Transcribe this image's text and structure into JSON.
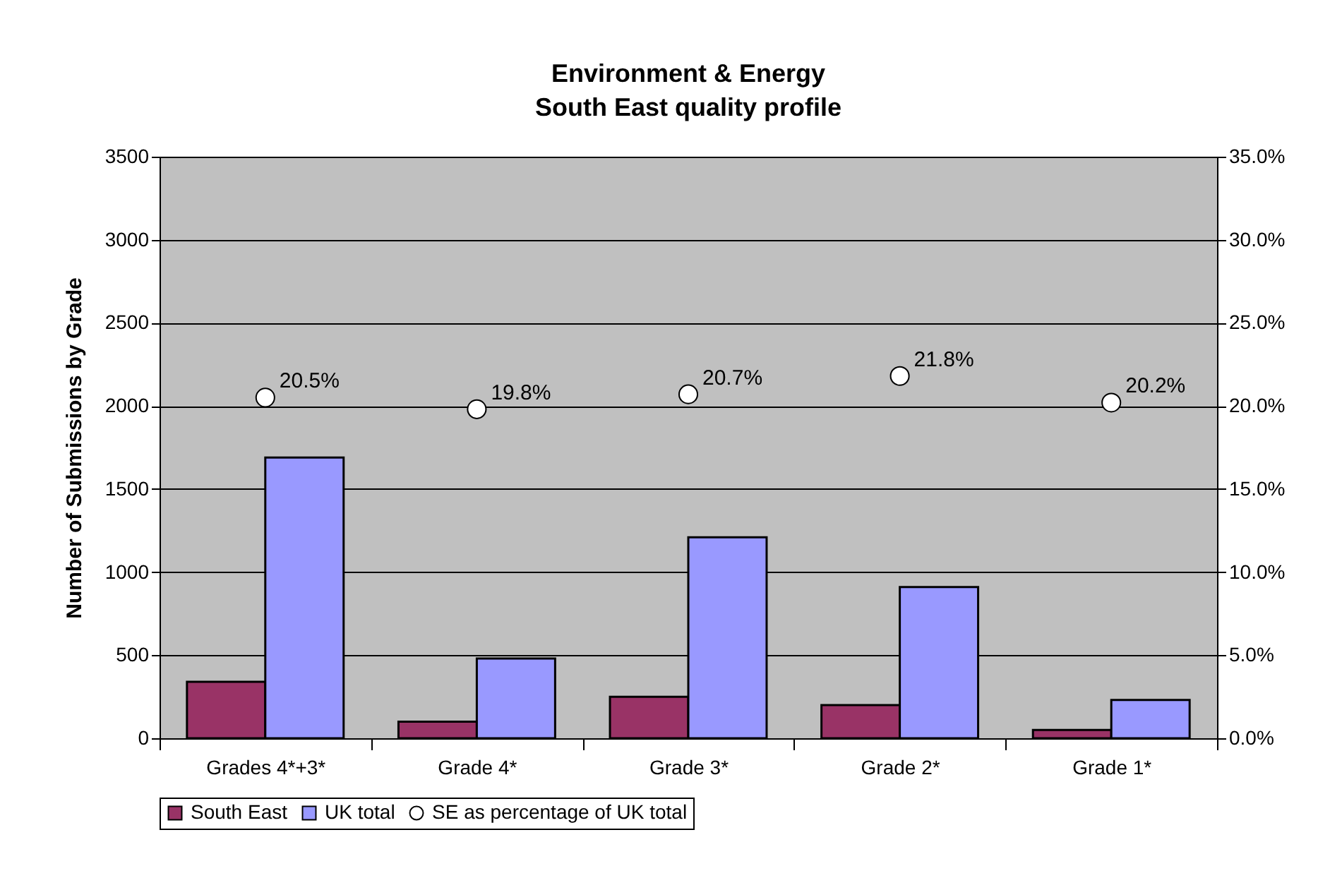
{
  "chart_data": {
    "type": "bar",
    "title": "Environment & Energy",
    "subtitle": "South East quality profile",
    "ylabel": "Number of Submissions by Grade",
    "categories": [
      "Grades 4*+3*",
      "Grade 4*",
      "Grade 3*",
      "Grade 2*",
      "Grade 1*"
    ],
    "series": [
      {
        "name": "South East",
        "type": "bar",
        "color": "#993366",
        "values": [
          340,
          100,
          250,
          200,
          50
        ]
      },
      {
        "name": "UK total",
        "type": "bar",
        "color": "#9999ff",
        "values": [
          1690,
          480,
          1210,
          910,
          230
        ]
      },
      {
        "name": "SE as percentage of UK total",
        "type": "scatter",
        "axis": "y2",
        "color": "#ffffff",
        "marker": "circle",
        "values": [
          20.5,
          19.8,
          20.7,
          21.8,
          20.2
        ],
        "value_labels": [
          "20.5%",
          "19.8%",
          "20.7%",
          "21.8%",
          "20.2%"
        ]
      }
    ],
    "ylim": [
      0,
      3500
    ],
    "yticks": [
      0,
      500,
      1000,
      1500,
      2000,
      2500,
      3000,
      3500
    ],
    "y2lim": [
      0,
      35
    ],
    "y2ticks": [
      {
        "value": 0,
        "label": "0.0%"
      },
      {
        "value": 5,
        "label": "5.0%"
      },
      {
        "value": 10,
        "label": "10.0%"
      },
      {
        "value": 15,
        "label": "15.0%"
      },
      {
        "value": 20,
        "label": "20.0%"
      },
      {
        "value": 25,
        "label": "25.0%"
      },
      {
        "value": 30,
        "label": "30.0%"
      },
      {
        "value": 35,
        "label": "35.0%"
      }
    ],
    "grid": "y",
    "legend": "bottom"
  }
}
